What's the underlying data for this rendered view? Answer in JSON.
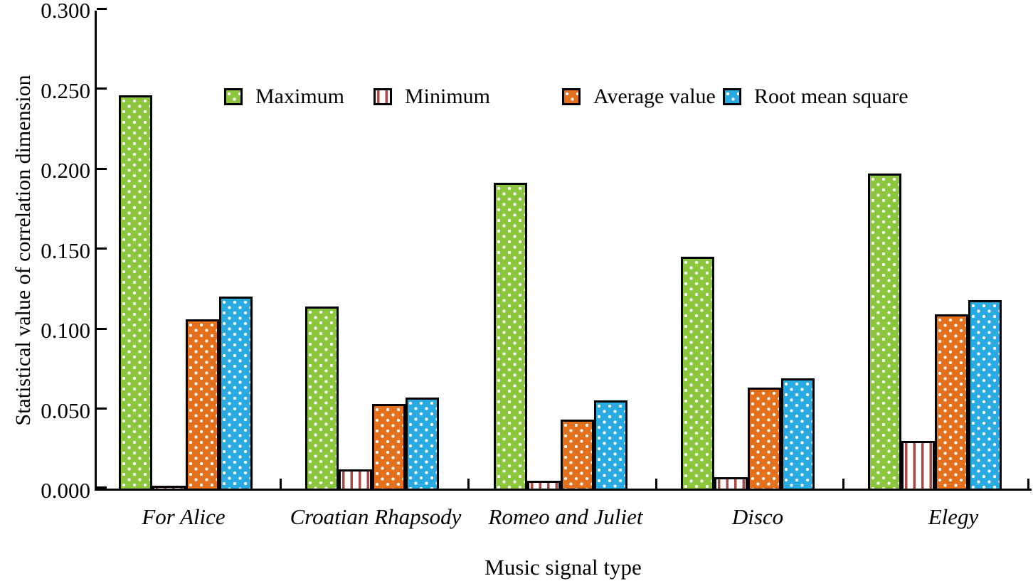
{
  "chart_data": {
    "type": "bar",
    "title": "",
    "xlabel": "Music signal type",
    "ylabel": "Statistical value of correlation dimension",
    "categories": [
      "For Alice",
      "Croatian Rhapsody",
      "Romeo and Juliet",
      "Disco",
      "Elegy"
    ],
    "series": [
      {
        "name": "Maximum",
        "pattern": "dots",
        "color": "#8CC63E",
        "values": [
          0.246,
          0.114,
          0.191,
          0.145,
          0.197
        ]
      },
      {
        "name": "Minimum",
        "pattern": "stripes",
        "color": "#AC4A47",
        "values": [
          0.002,
          0.012,
          0.005,
          0.007,
          0.03
        ]
      },
      {
        "name": "Average value",
        "pattern": "dots",
        "color": "#E2701C",
        "values": [
          0.106,
          0.053,
          0.043,
          0.063,
          0.109
        ]
      },
      {
        "name": "Root mean square",
        "pattern": "dots",
        "color": "#29ABE2",
        "values": [
          0.12,
          0.057,
          0.055,
          0.069,
          0.118
        ]
      }
    ],
    "ylim": [
      0.0,
      0.3
    ],
    "ytick_step": 0.05,
    "ytick_labels": [
      "0.000",
      "0.050",
      "0.100",
      "0.150",
      "0.200",
      "0.250",
      "0.300"
    ],
    "legend_position": "top-inside",
    "grid": false,
    "axis_color": "#000000",
    "dot_pattern_color": "#ffffff"
  }
}
